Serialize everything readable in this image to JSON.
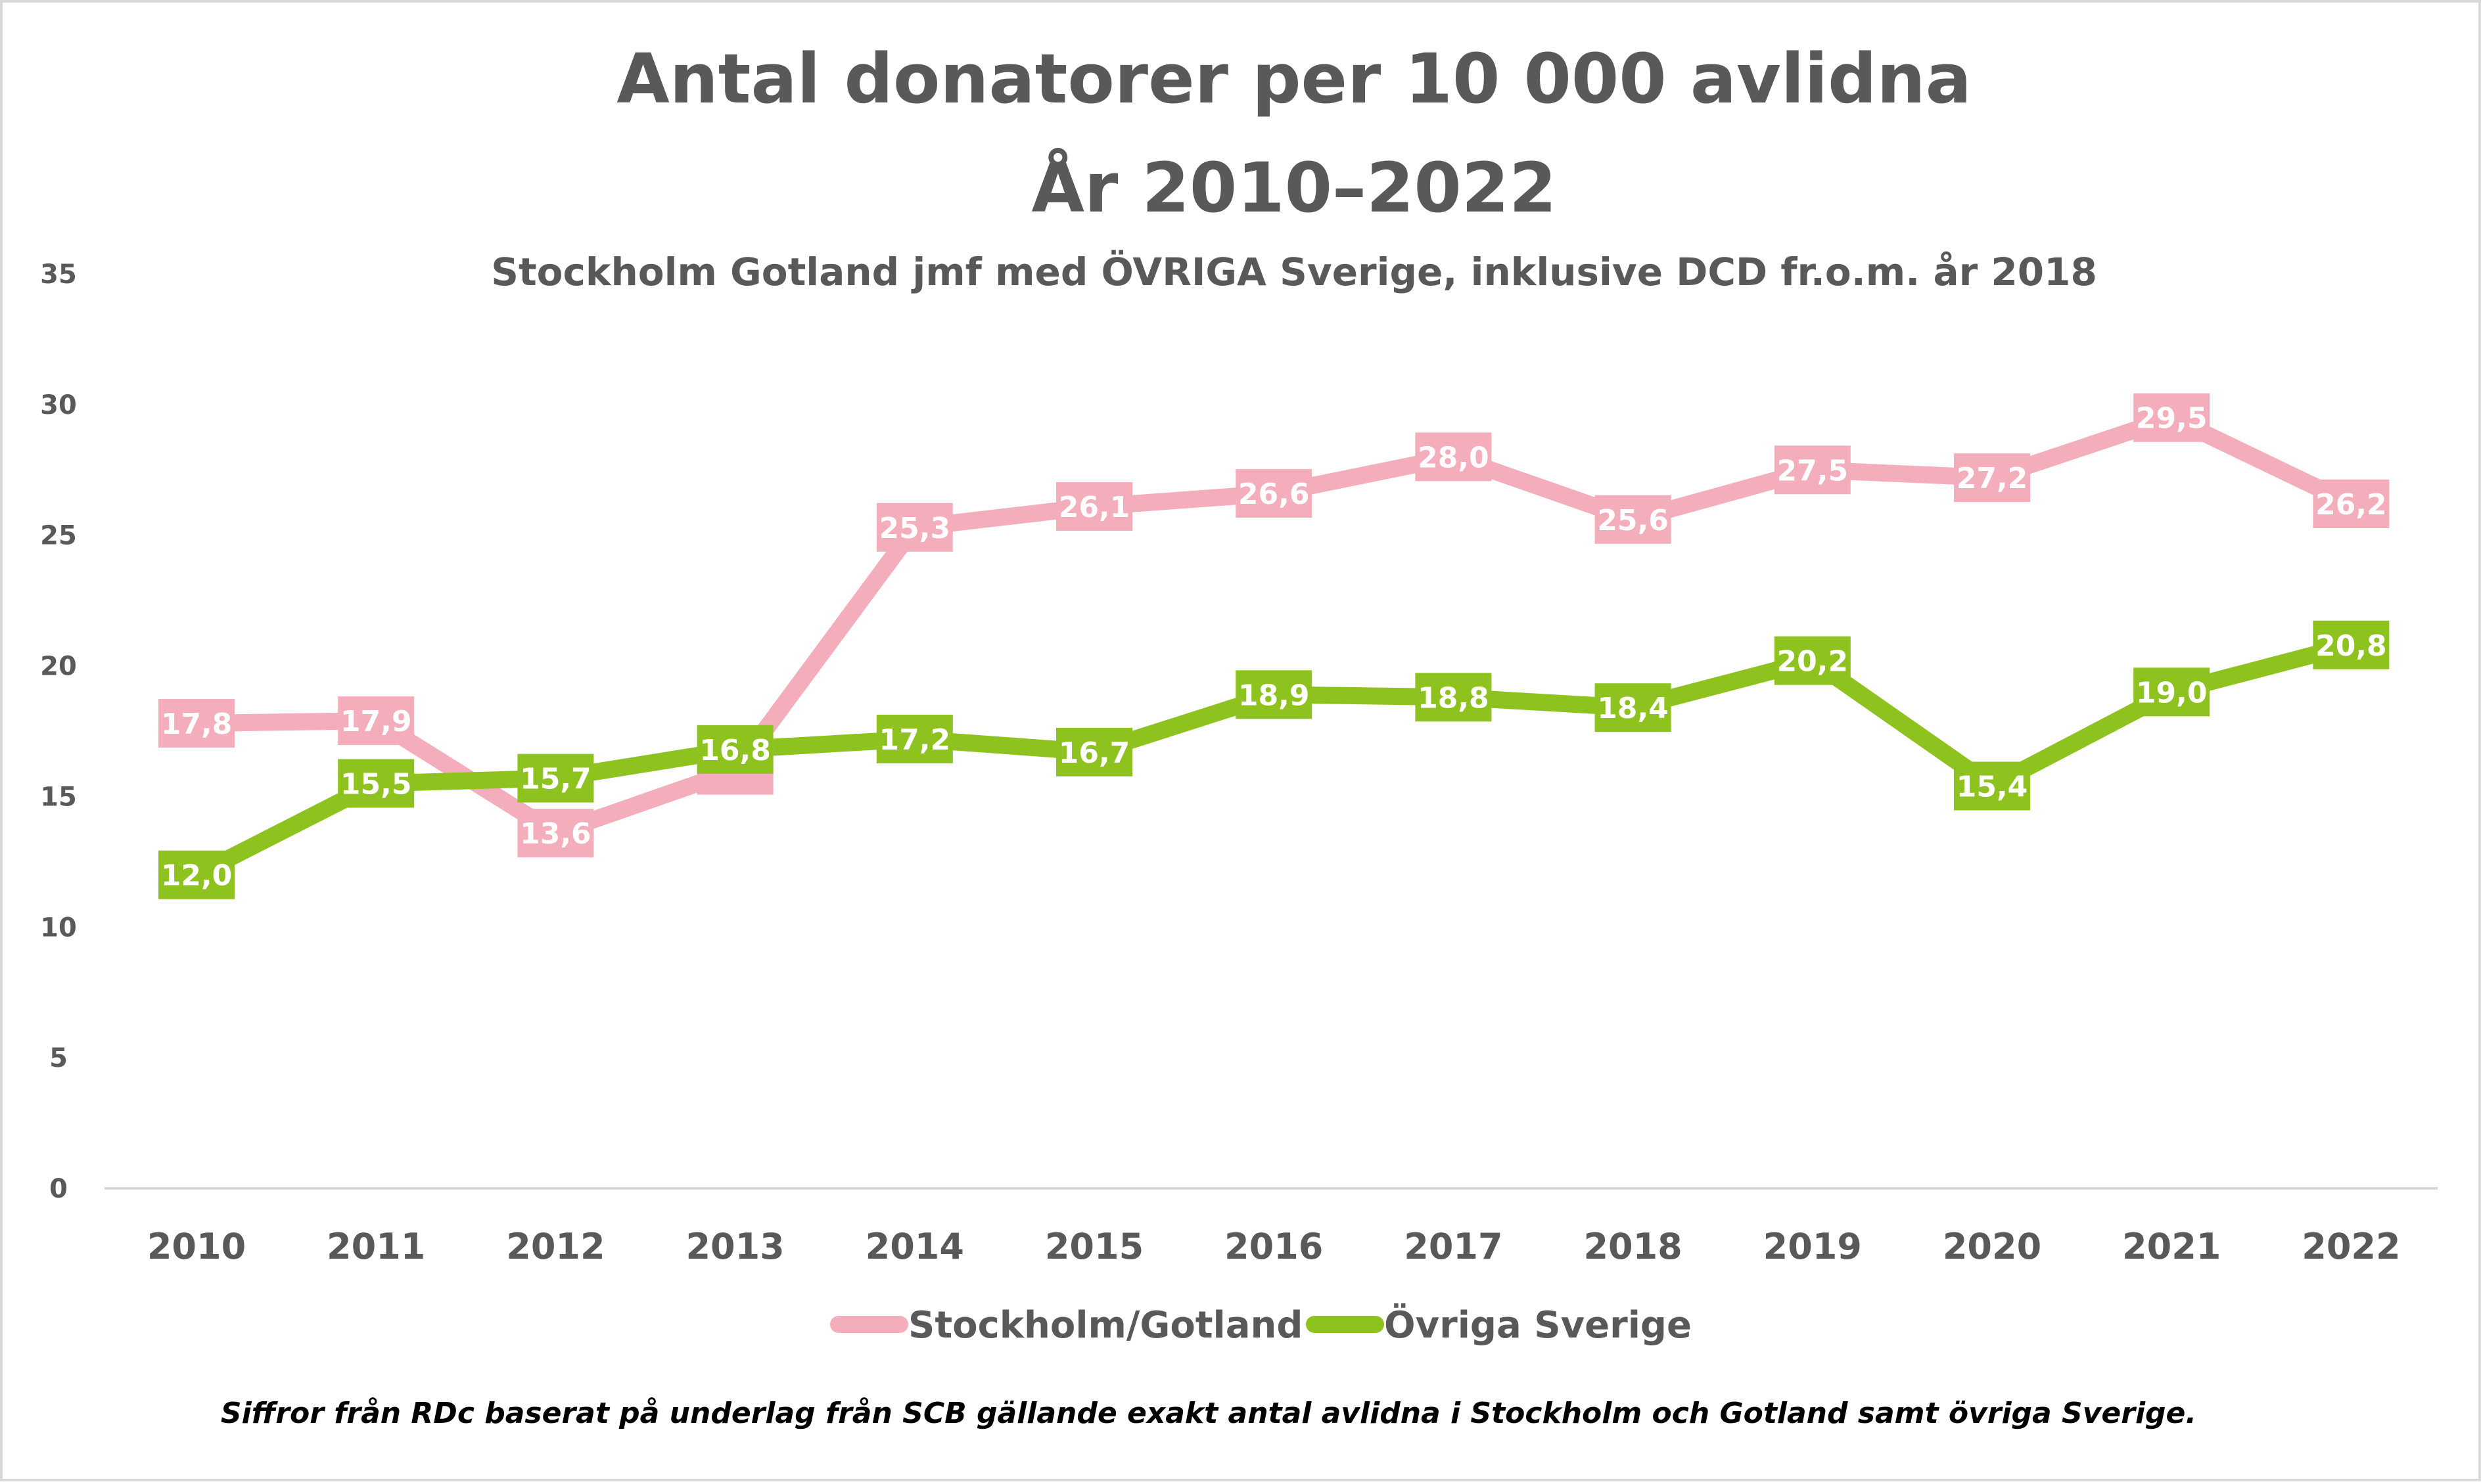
{
  "chart_data": {
    "type": "line",
    "title": "Antal donatorer per 10 000 avlidna",
    "title_line2": "År 2010–2022",
    "subtitle": "Stockholm Gotland jmf med ÖVRIGA Sverige, inklusive DCD fr.o.m. år 2018",
    "footnote": "Siffror från RDc baserat på underlag från SCB gällande exakt antal avlidna i Stockholm och Gotland samt övriga Sverige.",
    "categories": [
      "2010",
      "2011",
      "2012",
      "2013",
      "2014",
      "2015",
      "2016",
      "2017",
      "2018",
      "2019",
      "2020",
      "2021",
      "2022"
    ],
    "y_ticks": [
      "0",
      "5",
      "10",
      "15",
      "20",
      "25",
      "30",
      "35"
    ],
    "ylim": [
      0,
      35
    ],
    "grid": false,
    "legend_position": "bottom",
    "series": [
      {
        "name": "Stockholm/Gotland",
        "color": "#f4aebb",
        "values": [
          17.8,
          17.9,
          13.6,
          16.0,
          25.3,
          26.1,
          26.6,
          28.0,
          25.6,
          27.5,
          27.2,
          29.5,
          26.2
        ],
        "labels": [
          "17,8",
          "17,9",
          "13,6",
          "",
          "25,3",
          "26,1",
          "26,6",
          "28,0",
          "25,6",
          "27,5",
          "27,2",
          "29,5",
          "26,2"
        ]
      },
      {
        "name": "Övriga Sverige",
        "color": "#8dc21f",
        "values": [
          12.0,
          15.5,
          15.7,
          16.8,
          17.2,
          16.7,
          18.9,
          18.8,
          18.4,
          20.2,
          15.4,
          19.0,
          20.8
        ],
        "labels": [
          "12,0",
          "15,5",
          "15,7",
          "16,8",
          "17,2",
          "16,7",
          "18,9",
          "18,8",
          "18,4",
          "20,2",
          "15,4",
          "19,0",
          "20,8"
        ]
      }
    ]
  }
}
